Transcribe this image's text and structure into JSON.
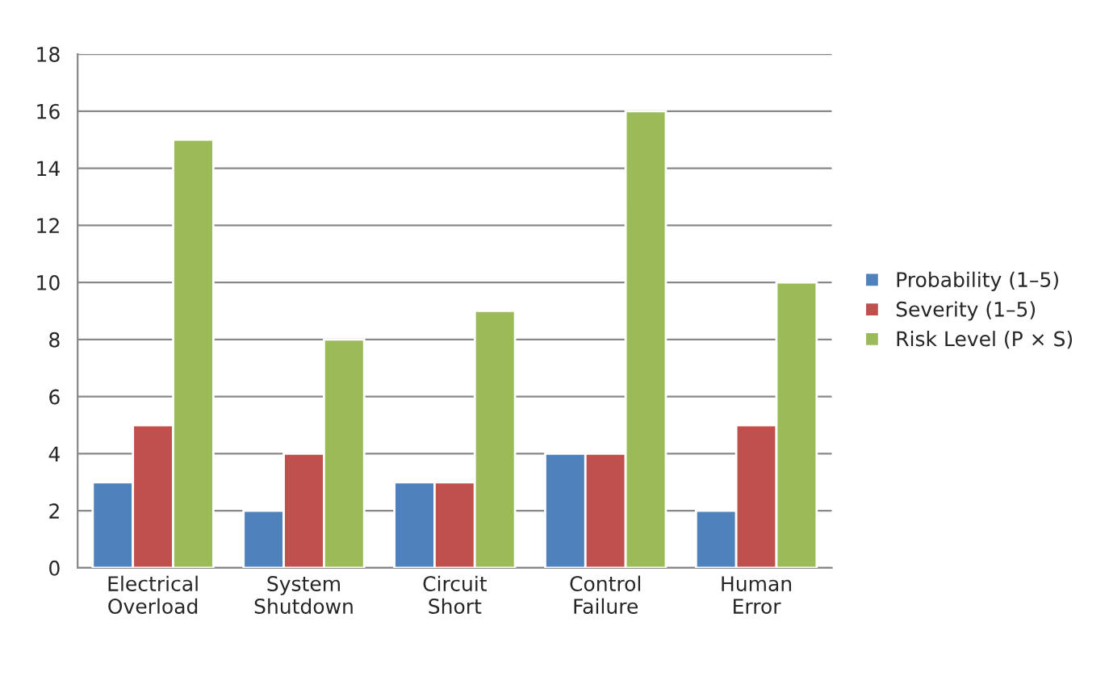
{
  "chart_data": {
    "type": "bar",
    "categories": [
      "Electrical\nOverload",
      "System\nShutdown",
      "Circuit\nShort",
      "Control\nFailure",
      "Human\nError"
    ],
    "series": [
      {
        "name": "Probability (1–5)",
        "color": "#4f81bd",
        "values": [
          3,
          2,
          3,
          4,
          2
        ]
      },
      {
        "name": "Severity (1–5)",
        "color": "#c0504d",
        "values": [
          5,
          4,
          3,
          4,
          5
        ]
      },
      {
        "name": "Risk Level (P × S)",
        "color": "#9bbb59",
        "values": [
          15,
          8,
          9,
          16,
          10
        ]
      }
    ],
    "ylim": [
      0,
      18
    ],
    "yticks": [
      0,
      2,
      4,
      6,
      8,
      10,
      12,
      14,
      16,
      18
    ],
    "grid": "y",
    "legend": "right"
  }
}
